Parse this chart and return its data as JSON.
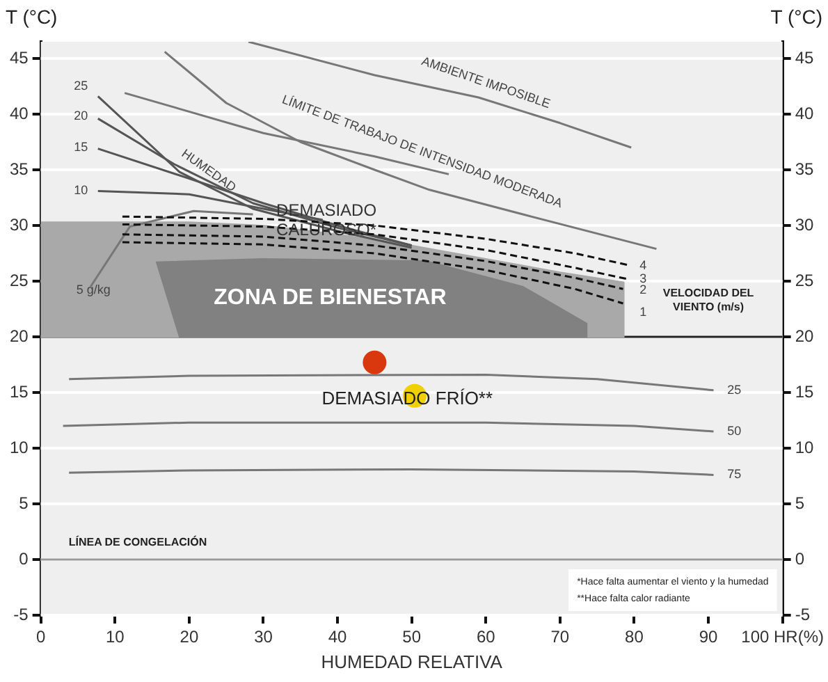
{
  "chart_data": {
    "type": "line",
    "xlabel": "HUMEDAD RELATIVA",
    "ylabel": "T (°C)",
    "y2label": "T (°C)",
    "xlim": [
      0,
      100
    ],
    "xticks": [
      0,
      10,
      20,
      30,
      40,
      50,
      60,
      70,
      80,
      90,
      {
        "value": 100,
        "label": "100 HR(%)"
      }
    ],
    "ylim": [
      -5,
      46.5
    ],
    "yticks": [
      -5,
      0,
      5,
      10,
      15,
      20,
      25,
      30,
      35,
      40,
      45
    ],
    "y2lim": [
      -5,
      46.5
    ],
    "y2ticks": [
      -5,
      0,
      5,
      10,
      15,
      20,
      25,
      30,
      35,
      40,
      45
    ],
    "grid": "y",
    "legend": false,
    "marker": "none",
    "line_style": "solid",
    "series": [
      {
        "type": "area",
        "color": "#a9a9a9",
        "x": [
          0,
          10,
          20,
          30,
          40,
          50,
          60,
          70,
          78.6,
          78.6,
          0
        ],
        "values": [
          30.3,
          30.3,
          30.3,
          30,
          29.2,
          28.2,
          27,
          25.8,
          24.9,
          20,
          20
        ]
      },
      {
        "type": "area",
        "color": "#818181",
        "x": [
          15.5,
          30,
          52,
          65,
          73.6,
          73.6,
          18.6
        ],
        "values": [
          26.7,
          27,
          26.8,
          24.5,
          21.2,
          20,
          20
        ]
      },
      {
        "color": "#777777",
        "x": [
          28,
          45,
          59,
          70,
          79.6
        ],
        "values": [
          46.5,
          43.5,
          41.5,
          39.2,
          37
        ]
      },
      {
        "color": "#777777",
        "x": [
          16.7,
          25,
          35,
          45,
          52.4,
          65,
          83
        ],
        "values": [
          45.6,
          41,
          37.5,
          35,
          33.2,
          31,
          27.9
        ]
      },
      {
        "color": "#777777",
        "x": [
          11.3,
          30,
          45,
          55
        ],
        "values": [
          41.9,
          38.3,
          36.2,
          34.6
        ]
      },
      {
        "color": "#555555",
        "x": [
          7.7,
          18.7,
          28.6,
          40,
          50
        ],
        "values": [
          41.6,
          34.8,
          31.5,
          29.5,
          28
        ]
      },
      {
        "color": "#555555",
        "x": [
          7.7,
          18,
          28.6,
          40,
          50
        ],
        "values": [
          39.6,
          35.5,
          32,
          29.8,
          28.2
        ]
      },
      {
        "color": "#555555",
        "x": [
          7.7,
          18.7,
          30,
          40,
          50
        ],
        "values": [
          36.9,
          34.5,
          32,
          30,
          28.2
        ]
      },
      {
        "color": "#555555",
        "x": [
          7.7,
          20,
          30,
          38
        ],
        "values": [
          33.1,
          32.8,
          31.5,
          30.5
        ]
      },
      {
        "color": "#777777",
        "x": [
          6.7,
          12,
          20.6,
          28.6
        ],
        "values": [
          24.5,
          29.9,
          31.3,
          31
        ]
      },
      {
        "color": "#111111",
        "line_style": "dashed",
        "x": [
          11,
          30,
          45,
          60,
          72,
          79.5
        ],
        "values": [
          30.8,
          30.6,
          30,
          28.8,
          27.5,
          26.4
        ]
      },
      {
        "color": "#111111",
        "line_style": "dashed",
        "x": [
          11,
          30,
          45,
          60,
          72,
          79
        ],
        "values": [
          30.1,
          29.9,
          29.2,
          27.8,
          26.2,
          25.2
        ]
      },
      {
        "color": "#111111",
        "line_style": "dashed",
        "x": [
          11,
          30,
          45,
          60,
          72,
          78.5
        ],
        "values": [
          29.2,
          29,
          28.2,
          26.8,
          25.3,
          24.3
        ]
      },
      {
        "color": "#111111",
        "line_style": "dashed",
        "x": [
          11,
          30,
          45,
          60,
          72,
          78.5
        ],
        "values": [
          28.5,
          28.3,
          27.5,
          26,
          24.3,
          23
        ]
      },
      {
        "color": "#777777",
        "x": [
          3.8,
          20,
          60,
          75,
          90.7
        ],
        "values": [
          16.2,
          16.5,
          16.6,
          16.2,
          15.2
        ]
      },
      {
        "color": "#777777",
        "x": [
          3,
          20,
          60,
          80,
          90.7
        ],
        "values": [
          12,
          12.3,
          12.3,
          12,
          11.5
        ]
      },
      {
        "color": "#777777",
        "x": [
          3.8,
          20,
          50,
          80,
          90.7
        ],
        "values": [
          7.8,
          8,
          8.1,
          7.9,
          7.6
        ]
      },
      {
        "type": "scatter",
        "marker": "circle",
        "color": "#d9380e",
        "x": [
          45
        ],
        "values": [
          17.7
        ]
      },
      {
        "type": "scatter",
        "marker": "circle",
        "color": "#f0d000",
        "x": [
          50.4
        ],
        "values": [
          14.7
        ]
      }
    ],
    "ref_lines": [
      {
        "axis": "y",
        "value": 0,
        "label": "LÍNEA DE CONGELACIÓN",
        "color": "#999999"
      },
      {
        "axis": "y",
        "value": 20,
        "color": "#222222"
      }
    ],
    "annotations": [
      "AMBIENTE IMPOSIBLE",
      "LÍMITE DE TRABAJO DE INTENSIDAD MODERADA",
      "HUMEDAD",
      "DEMASIADO\nCALUROSO*",
      "ZONA DE BIENESTAR",
      "5 g/kg",
      "25",
      "20",
      "15",
      "10",
      "4",
      "3",
      "2",
      "1",
      "VELOCIDAD DEL\nVIENTO (m/s)",
      "DEMASIADO FRÍO**",
      "25",
      "50",
      "75",
      "*Hace falta aumentar el viento y la humedad",
      "**Hace falta calor radiante"
    ]
  }
}
